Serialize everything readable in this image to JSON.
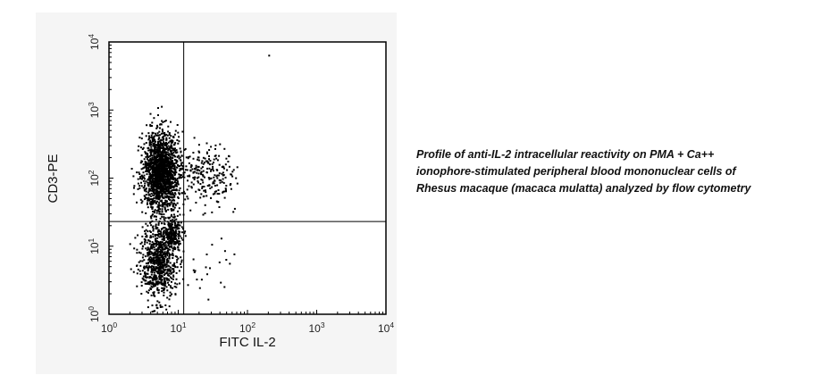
{
  "chart_data": {
    "type": "scatter",
    "xlabel": "FITC IL-2",
    "ylabel": "CD3-PE",
    "x_scale": "log",
    "y_scale": "log",
    "xlim": [
      1,
      10000
    ],
    "ylim": [
      1,
      10000
    ],
    "x_ticks": [
      {
        "base": "10",
        "exp": "0"
      },
      {
        "base": "10",
        "exp": "1"
      },
      {
        "base": "10",
        "exp": "2"
      },
      {
        "base": "10",
        "exp": "3"
      },
      {
        "base": "10",
        "exp": "4"
      }
    ],
    "y_ticks": [
      {
        "base": "10",
        "exp": "0"
      },
      {
        "base": "10",
        "exp": "1"
      },
      {
        "base": "10",
        "exp": "2"
      },
      {
        "base": "10",
        "exp": "3"
      },
      {
        "base": "10",
        "exp": "4"
      }
    ],
    "quadrant_gates": {
      "x": 12,
      "y": 23
    },
    "grid": false,
    "point_color": "#000000",
    "populations": [
      {
        "x_center": 5.5,
        "y_center": 130,
        "x_spread_decades": 0.13,
        "y_spread_decades": 0.28,
        "count": 1700
      },
      {
        "x_center": 5.0,
        "y_center": 6,
        "x_spread_decades": 0.13,
        "y_spread_decades": 0.28,
        "count": 750
      },
      {
        "x_center": 8.0,
        "y_center": 16,
        "x_spread_decades": 0.07,
        "y_spread_decades": 0.12,
        "count": 220
      },
      {
        "x_center": 25,
        "y_center": 110,
        "x_spread_decades": 0.2,
        "y_spread_decades": 0.22,
        "count": 230
      },
      {
        "x_center": 20,
        "y_center": 5,
        "x_spread_decades": 0.25,
        "y_spread_decades": 0.25,
        "count": 25
      }
    ],
    "outlier_points": [
      {
        "x": 200,
        "y": 6500
      },
      {
        "x": 48,
        "y": 6.5
      },
      {
        "x": 40,
        "y": 3
      },
      {
        "x": 20,
        "y": 2.5
      }
    ]
  },
  "caption": {
    "text": "Profile of anti-IL-2 intracellular reactivity on PMA + Ca++ ionophore-stimulated peripheral blood mononuclear cells of Rhesus macaque (macaca mulatta) analyzed by flow cytometry"
  }
}
